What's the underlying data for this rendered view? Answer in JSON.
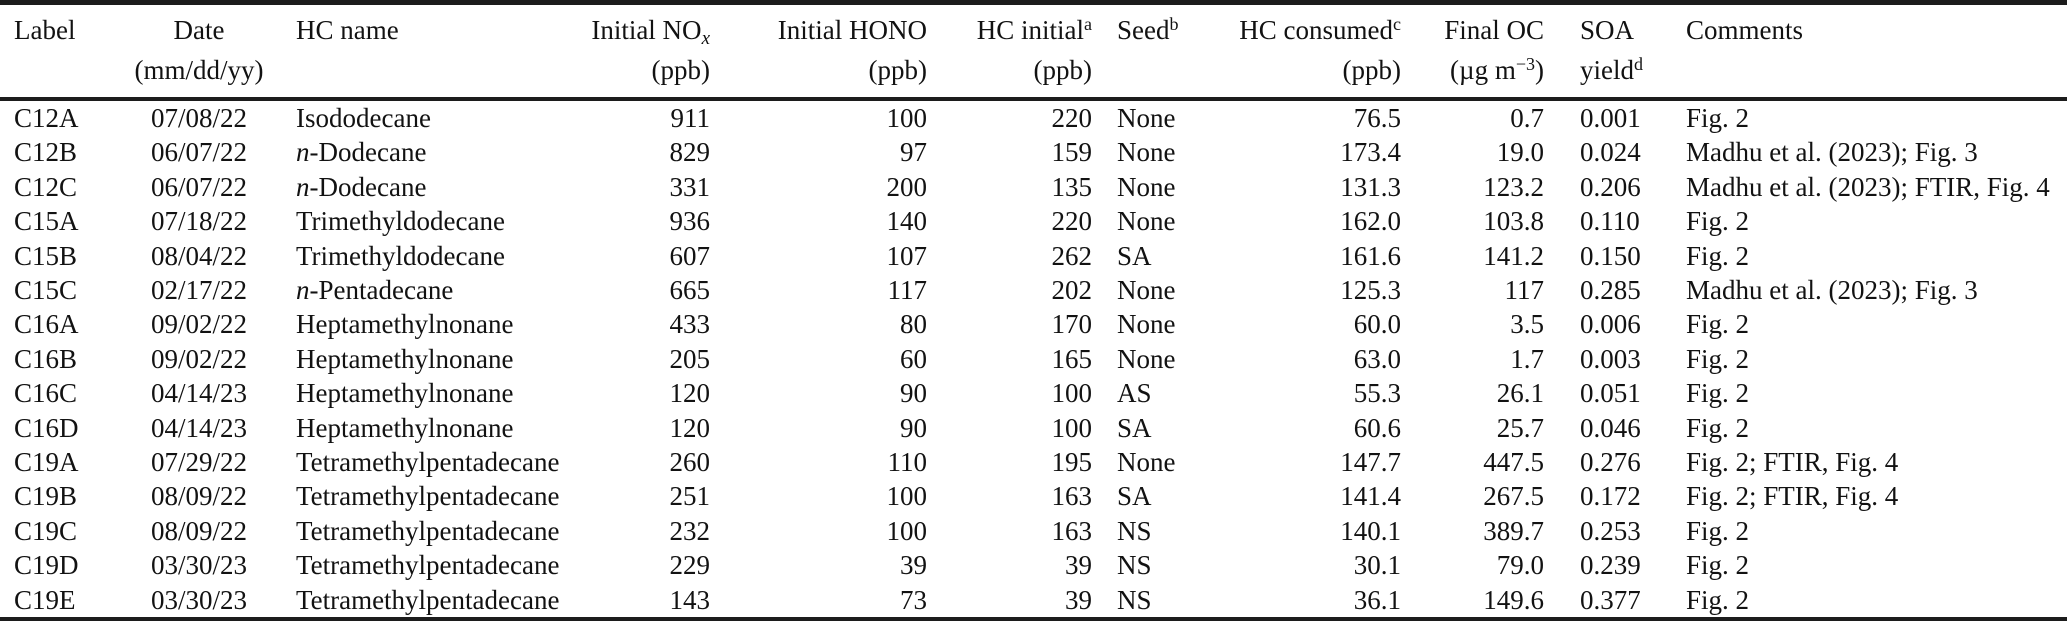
{
  "table": {
    "header": {
      "label": {
        "line1": "Label"
      },
      "date": {
        "line1": "Date",
        "line2": "(mm/dd/yy)"
      },
      "hc_name": {
        "line1": "HC name"
      },
      "initial_nox": {
        "line1": "Initial NO",
        "sub": "x",
        "line2": "(ppb)"
      },
      "initial_hono": {
        "line1": "Initial HONO",
        "line2": "(ppb)"
      },
      "hc_initial": {
        "line1": "HC initial",
        "sup": "a",
        "line2": "(ppb)"
      },
      "seed": {
        "line1": "Seed",
        "sup": "b"
      },
      "hc_consumed": {
        "line1": "HC consumed",
        "sup": "c",
        "line2": "(ppb)"
      },
      "final_oc": {
        "line1": "Final OC",
        "unit_pre": "(µg m",
        "unit_sup": "−3",
        "unit_post": ")"
      },
      "soa_yield": {
        "line1": "SOA",
        "line2": "yield",
        "line2_sup": "d"
      },
      "comments": {
        "line1": "Comments"
      }
    },
    "rows": [
      {
        "label": "C12A",
        "date": "07/08/22",
        "hc_prefix_italic": "",
        "hc_name": "Isododecane",
        "initial_nox": "911",
        "initial_hono": "100",
        "hc_initial": "220",
        "seed": "None",
        "hc_consumed": "76.5",
        "final_oc": "0.7",
        "soa_yield": "0.001",
        "comments": "Fig. 2"
      },
      {
        "label": "C12B",
        "date": "06/07/22",
        "hc_prefix_italic": "n",
        "hc_name": "-Dodecane",
        "initial_nox": "829",
        "initial_hono": "97",
        "hc_initial": "159",
        "seed": "None",
        "hc_consumed": "173.4",
        "final_oc": "19.0",
        "soa_yield": "0.024",
        "comments": "Madhu et al. (2023); Fig. 3"
      },
      {
        "label": "C12C",
        "date": "06/07/22",
        "hc_prefix_italic": "n",
        "hc_name": "-Dodecane",
        "initial_nox": "331",
        "initial_hono": "200",
        "hc_initial": "135",
        "seed": "None",
        "hc_consumed": "131.3",
        "final_oc": "123.2",
        "soa_yield": "0.206",
        "comments": "Madhu et al. (2023); FTIR, Fig. 4"
      },
      {
        "label": "C15A",
        "date": "07/18/22",
        "hc_prefix_italic": "",
        "hc_name": "Trimethyldodecane",
        "initial_nox": "936",
        "initial_hono": "140",
        "hc_initial": "220",
        "seed": "None",
        "hc_consumed": "162.0",
        "final_oc": "103.8",
        "soa_yield": "0.110",
        "comments": "Fig. 2"
      },
      {
        "label": "C15B",
        "date": "08/04/22",
        "hc_prefix_italic": "",
        "hc_name": "Trimethyldodecane",
        "initial_nox": "607",
        "initial_hono": "107",
        "hc_initial": "262",
        "seed": "SA",
        "hc_consumed": "161.6",
        "final_oc": "141.2",
        "soa_yield": "0.150",
        "comments": "Fig. 2"
      },
      {
        "label": "C15C",
        "date": "02/17/22",
        "hc_prefix_italic": "n",
        "hc_name": "-Pentadecane",
        "initial_nox": "665",
        "initial_hono": "117",
        "hc_initial": "202",
        "seed": "None",
        "hc_consumed": "125.3",
        "final_oc": "117",
        "soa_yield": "0.285",
        "comments": "Madhu et al. (2023); Fig. 3"
      },
      {
        "label": "C16A",
        "date": "09/02/22",
        "hc_prefix_italic": "",
        "hc_name": "Heptamethylnonane",
        "initial_nox": "433",
        "initial_hono": "80",
        "hc_initial": "170",
        "seed": "None",
        "hc_consumed": "60.0",
        "final_oc": "3.5",
        "soa_yield": "0.006",
        "comments": "Fig. 2"
      },
      {
        "label": "C16B",
        "date": "09/02/22",
        "hc_prefix_italic": "",
        "hc_name": "Heptamethylnonane",
        "initial_nox": "205",
        "initial_hono": "60",
        "hc_initial": "165",
        "seed": "None",
        "hc_consumed": "63.0",
        "final_oc": "1.7",
        "soa_yield": "0.003",
        "comments": "Fig. 2"
      },
      {
        "label": "C16C",
        "date": "04/14/23",
        "hc_prefix_italic": "",
        "hc_name": "Heptamethylnonane",
        "initial_nox": "120",
        "initial_hono": "90",
        "hc_initial": "100",
        "seed": "AS",
        "hc_consumed": "55.3",
        "final_oc": "26.1",
        "soa_yield": "0.051",
        "comments": "Fig. 2"
      },
      {
        "label": "C16D",
        "date": "04/14/23",
        "hc_prefix_italic": "",
        "hc_name": "Heptamethylnonane",
        "initial_nox": "120",
        "initial_hono": "90",
        "hc_initial": "100",
        "seed": "SA",
        "hc_consumed": "60.6",
        "final_oc": "25.7",
        "soa_yield": "0.046",
        "comments": "Fig. 2"
      },
      {
        "label": "C19A",
        "date": "07/29/22",
        "hc_prefix_italic": "",
        "hc_name": "Tetramethylpentadecane",
        "initial_nox": "260",
        "initial_hono": "110",
        "hc_initial": "195",
        "seed": "None",
        "hc_consumed": "147.7",
        "final_oc": "447.5",
        "soa_yield": "0.276",
        "comments": "Fig. 2; FTIR, Fig. 4"
      },
      {
        "label": "C19B",
        "date": "08/09/22",
        "hc_prefix_italic": "",
        "hc_name": "Tetramethylpentadecane",
        "initial_nox": "251",
        "initial_hono": "100",
        "hc_initial": "163",
        "seed": "SA",
        "hc_consumed": "141.4",
        "final_oc": "267.5",
        "soa_yield": "0.172",
        "comments": "Fig. 2; FTIR, Fig. 4"
      },
      {
        "label": "C19C",
        "date": "08/09/22",
        "hc_prefix_italic": "",
        "hc_name": "Tetramethylpentadecane",
        "initial_nox": "232",
        "initial_hono": "100",
        "hc_initial": "163",
        "seed": "NS",
        "hc_consumed": "140.1",
        "final_oc": "389.7",
        "soa_yield": "0.253",
        "comments": "Fig. 2"
      },
      {
        "label": "C19D",
        "date": "03/30/23",
        "hc_prefix_italic": "",
        "hc_name": "Tetramethylpentadecane",
        "initial_nox": "229",
        "initial_hono": "39",
        "hc_initial": "39",
        "seed": "NS",
        "hc_consumed": "30.1",
        "final_oc": "79.0",
        "soa_yield": "0.239",
        "comments": "Fig. 2"
      },
      {
        "label": "C19E",
        "date": "03/30/23",
        "hc_prefix_italic": "",
        "hc_name": "Tetramethylpentadecane",
        "initial_nox": "143",
        "initial_hono": "73",
        "hc_initial": "39",
        "seed": "NS",
        "hc_consumed": "36.1",
        "final_oc": "149.6",
        "soa_yield": "0.377",
        "comments": "Fig. 2"
      }
    ]
  }
}
